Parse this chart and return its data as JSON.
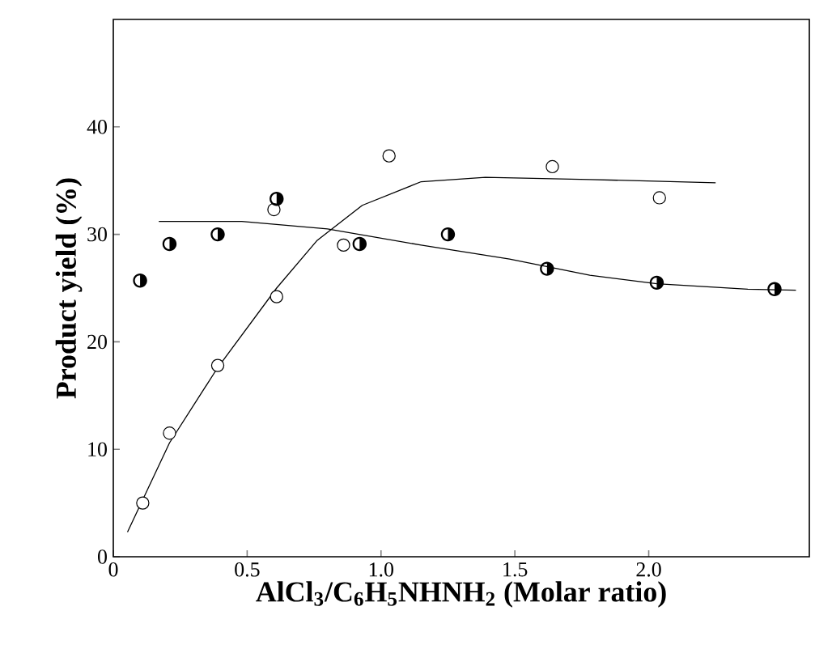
{
  "chart_data": {
    "type": "scatter",
    "xlabel": "AlCl$_{3}$/C$_{6}$H$_{5}$NHNH$_{2}$ (Molar ratio)",
    "ylabel": "Product yield (%)",
    "xlim": [
      0,
      2.6
    ],
    "ylim": [
      0,
      50
    ],
    "xticks": [
      0,
      0.5,
      {
        "value": 1,
        "label": "1.0"
      },
      1.5,
      {
        "value": 2,
        "label": "2.0"
      }
    ],
    "yticks": [
      0,
      10,
      20,
      30,
      40
    ],
    "grid": false,
    "series": [
      {
        "type": "line",
        "color": "#000000",
        "marker": "none",
        "x": [
          0.053,
          0.21,
          0.39,
          0.61,
          0.76,
          0.93,
          1.15,
          1.39,
          1.78,
          2.25
        ],
        "values": [
          2.3,
          10.6,
          17.6,
          25.0,
          29.4,
          32.7,
          34.9,
          35.3,
          35.1,
          34.8
        ]
      },
      {
        "type": "line",
        "color": "#000000",
        "marker": "none",
        "x": [
          0.17,
          0.48,
          0.8,
          1.15,
          1.48,
          1.78,
          2.03,
          2.37,
          2.55
        ],
        "values": [
          31.2,
          31.2,
          30.5,
          29.0,
          27.7,
          26.2,
          25.4,
          24.9,
          24.8
        ]
      },
      {
        "color": "#000000",
        "marker": "circle",
        "x": [
          0.11,
          0.21,
          0.39,
          0.61,
          0.6,
          0.86,
          1.03,
          1.64,
          2.04
        ],
        "values": [
          5.0,
          11.5,
          17.8,
          24.2,
          32.3,
          29.0,
          37.3,
          36.3,
          33.4
        ]
      },
      {
        "color": "#000000",
        "x": [
          0.1,
          0.21,
          0.39,
          0.61,
          0.92,
          1.25,
          1.62,
          2.03,
          2.47
        ],
        "values": [
          25.7,
          29.1,
          30.0,
          33.3,
          29.1,
          30.0,
          26.8,
          25.5,
          24.9
        ]
      }
    ]
  }
}
